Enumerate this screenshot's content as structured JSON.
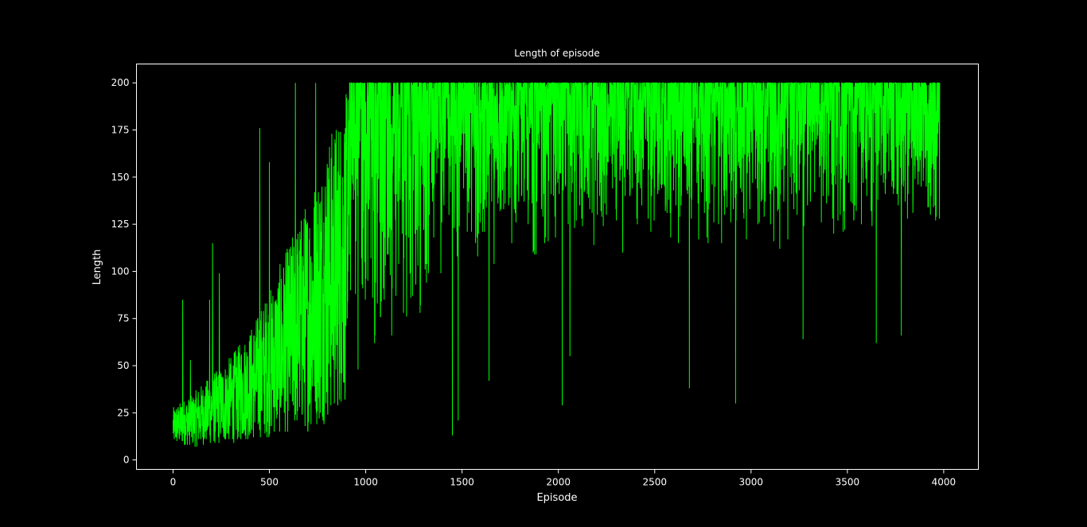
{
  "chart_data": {
    "type": "line",
    "title": "Length of episode",
    "xlabel": "Episode",
    "ylabel": "Length",
    "xlim": [
      -190,
      4180
    ],
    "ylim": [
      -5,
      210
    ],
    "xticks": [
      0,
      500,
      1000,
      1500,
      2000,
      2500,
      3000,
      3500,
      4000
    ],
    "yticks": [
      0,
      25,
      50,
      75,
      100,
      125,
      150,
      175,
      200
    ],
    "grid": false,
    "legend": "none",
    "colors": {
      "background": "#000000",
      "axes": "#ffffff",
      "text": "#ffffff",
      "series": "#00ff00"
    },
    "series": [
      {
        "n_points": 3980,
        "x_start": 0,
        "x_end": 3979,
        "y_min": 5,
        "y_max": 200,
        "profile": [
          {
            "x": 0,
            "lo": 8,
            "hi": 28
          },
          {
            "x": 100,
            "lo": 7,
            "hi": 35
          },
          {
            "x": 200,
            "lo": 8,
            "hi": 45
          },
          {
            "x": 300,
            "lo": 9,
            "hi": 55
          },
          {
            "x": 400,
            "lo": 10,
            "hi": 70
          },
          {
            "x": 500,
            "lo": 12,
            "hi": 90
          },
          {
            "x": 600,
            "lo": 14,
            "hi": 115
          },
          {
            "x": 700,
            "lo": 15,
            "hi": 140
          },
          {
            "x": 800,
            "lo": 20,
            "hi": 170
          },
          {
            "x": 900,
            "lo": 30,
            "hi": 195
          },
          {
            "x": 1000,
            "lo": 45,
            "hi": 200
          },
          {
            "x": 1100,
            "lo": 55,
            "hi": 200
          },
          {
            "x": 1200,
            "lo": 65,
            "hi": 200
          },
          {
            "x": 1400,
            "lo": 80,
            "hi": 200
          },
          {
            "x": 1600,
            "lo": 95,
            "hi": 200
          },
          {
            "x": 1800,
            "lo": 100,
            "hi": 200
          },
          {
            "x": 2200,
            "lo": 105,
            "hi": 200
          },
          {
            "x": 2600,
            "lo": 108,
            "hi": 200
          },
          {
            "x": 3000,
            "lo": 108,
            "hi": 200
          },
          {
            "x": 3500,
            "lo": 110,
            "hi": 200
          },
          {
            "x": 3979,
            "lo": 110,
            "hi": 200
          }
        ],
        "spikes": [
          {
            "x": 50,
            "y": 85
          },
          {
            "x": 90,
            "y": 53
          },
          {
            "x": 190,
            "y": 85
          },
          {
            "x": 205,
            "y": 115
          },
          {
            "x": 240,
            "y": 99
          },
          {
            "x": 450,
            "y": 176
          },
          {
            "x": 500,
            "y": 158
          },
          {
            "x": 635,
            "y": 200
          },
          {
            "x": 740,
            "y": 200
          },
          {
            "x": 1450,
            "y": 13
          },
          {
            "x": 1480,
            "y": 21
          },
          {
            "x": 1640,
            "y": 42
          },
          {
            "x": 2020,
            "y": 29
          },
          {
            "x": 2060,
            "y": 55
          },
          {
            "x": 2680,
            "y": 38
          },
          {
            "x": 2920,
            "y": 30
          },
          {
            "x": 3270,
            "y": 64
          },
          {
            "x": 3650,
            "y": 62
          },
          {
            "x": 3780,
            "y": 66
          }
        ]
      }
    ]
  }
}
